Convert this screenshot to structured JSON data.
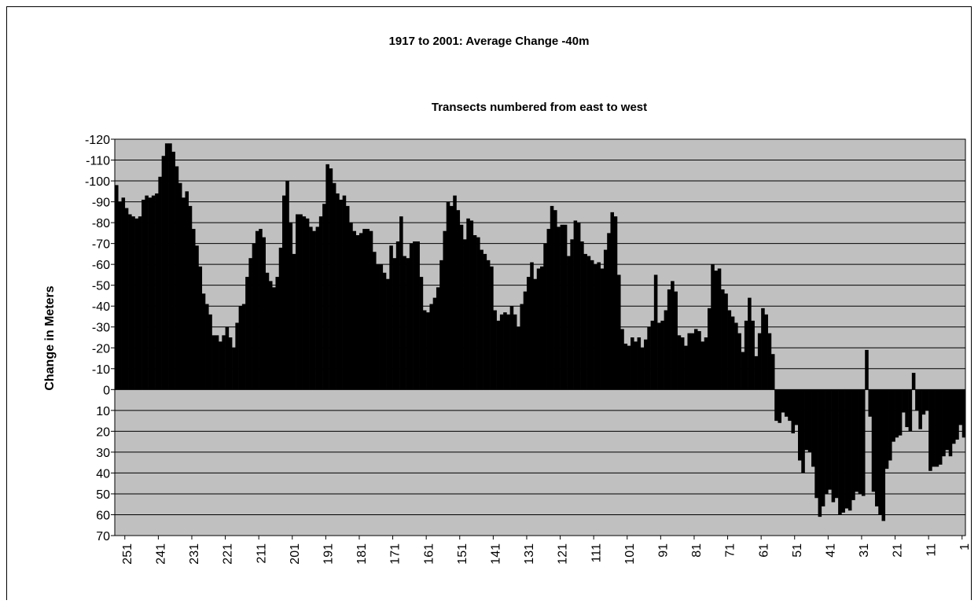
{
  "chart_data": {
    "type": "bar",
    "title": "1917 to 2001: Average Change -40m",
    "subtitle": "Transects numbered from east to west",
    "y_label": "Change in Meters",
    "color": "#000000",
    "plot_background": "#c0c0c0",
    "grid": true,
    "ylim": [
      70,
      -120
    ],
    "yticks": [
      -120,
      -110,
      -100,
      -90,
      -80,
      -70,
      -60,
      -50,
      -40,
      -30,
      -20,
      -10,
      0,
      10,
      20,
      30,
      40,
      50,
      60,
      70
    ],
    "categories": [
      null,
      null,
      null,
      "251",
      null,
      null,
      null,
      null,
      null,
      null,
      null,
      null,
      null,
      "241",
      null,
      null,
      null,
      null,
      null,
      null,
      null,
      null,
      null,
      "231",
      null,
      null,
      null,
      null,
      null,
      null,
      null,
      null,
      null,
      "221",
      null,
      null,
      null,
      null,
      null,
      null,
      null,
      null,
      null,
      "211",
      null,
      null,
      null,
      null,
      null,
      null,
      null,
      null,
      null,
      "201",
      null,
      null,
      null,
      null,
      null,
      null,
      null,
      null,
      null,
      "191",
      null,
      null,
      null,
      null,
      null,
      null,
      null,
      null,
      null,
      "181",
      null,
      null,
      null,
      null,
      null,
      null,
      null,
      null,
      null,
      "171",
      null,
      null,
      null,
      null,
      null,
      null,
      null,
      null,
      null,
      "161",
      null,
      null,
      null,
      null,
      null,
      null,
      null,
      null,
      null,
      "151",
      null,
      null,
      null,
      null,
      null,
      null,
      null,
      null,
      null,
      "141",
      null,
      null,
      null,
      null,
      null,
      null,
      null,
      null,
      null,
      "131",
      null,
      null,
      null,
      null,
      null,
      null,
      null,
      null,
      null,
      "121",
      null,
      null,
      null,
      null,
      null,
      null,
      null,
      null,
      null,
      "111",
      null,
      null,
      null,
      null,
      null,
      null,
      null,
      null,
      null,
      "101",
      null,
      null,
      null,
      null,
      null,
      null,
      null,
      null,
      null,
      "91",
      null,
      null,
      null,
      null,
      null,
      null,
      null,
      null,
      null,
      "81",
      null,
      null,
      null,
      null,
      null,
      null,
      null,
      null,
      null,
      "71",
      null,
      null,
      null,
      null,
      null,
      null,
      null,
      null,
      null,
      "61",
      null,
      null,
      null,
      null,
      null,
      null,
      null,
      null,
      null,
      "51",
      null,
      null,
      null,
      null,
      null,
      null,
      null,
      null,
      null,
      "41",
      null,
      null,
      null,
      null,
      null,
      null,
      null,
      null,
      null,
      "31",
      null,
      null,
      null,
      null,
      null,
      null,
      null,
      null,
      null,
      "21",
      null,
      null,
      null,
      null,
      null,
      null,
      null,
      null,
      null,
      "11",
      null,
      null,
      null,
      null,
      null,
      null,
      null,
      null,
      null,
      "1"
    ],
    "values": [
      -98,
      -90,
      -92,
      -87,
      -84,
      -83,
      -82,
      -83,
      -91,
      -93,
      -92,
      -93,
      -94,
      -102,
      -112,
      -118,
      -118,
      -114,
      -107,
      -99,
      -92,
      -95,
      -88,
      -77,
      -69,
      -59,
      -46,
      -41,
      -36,
      -26,
      -26,
      -23,
      -26,
      -30,
      -25,
      -20,
      -32,
      -40,
      -41,
      -54,
      -63,
      -70,
      -76,
      -77,
      -73,
      -56,
      -52,
      -49,
      -54,
      -68,
      -93,
      -100,
      -80,
      -65,
      -84,
      -84,
      -83,
      -82,
      -78,
      -76,
      -78,
      -83,
      -89,
      -108,
      -106,
      -99,
      -94,
      -91,
      -93,
      -88,
      -80,
      -76,
      -74,
      -75,
      -77,
      -77,
      -76,
      -66,
      -60,
      -60,
      -56,
      -53,
      -69,
      -63,
      -71,
      -83,
      -64,
      -63,
      -70,
      -71,
      -71,
      -54,
      -38,
      -37,
      -41,
      -44,
      -49,
      -62,
      -76,
      -90,
      -88,
      -93,
      -86,
      -79,
      -72,
      -82,
      -81,
      -74,
      -73,
      -67,
      -65,
      -62,
      -59,
      -38,
      -33,
      -36,
      -37,
      -36,
      -40,
      -36,
      -30,
      -41,
      -47,
      -54,
      -61,
      -53,
      -58,
      -59,
      -70,
      -77,
      -88,
      -86,
      -78,
      -79,
      -79,
      -64,
      -72,
      -81,
      -80,
      -71,
      -65,
      -64,
      -62,
      -60,
      -61,
      -58,
      -67,
      -75,
      -85,
      -83,
      -55,
      -29,
      -22,
      -21,
      -25,
      -23,
      -25,
      -20,
      -24,
      -30,
      -33,
      -55,
      -32,
      -33,
      -38,
      -48,
      -52,
      -47,
      -26,
      -25,
      -21,
      -27,
      -27,
      -29,
      -28,
      -23,
      -25,
      -39,
      -60,
      -57,
      -58,
      -48,
      -46,
      -38,
      -35,
      -32,
      -27,
      -18,
      -33,
      -44,
      -33,
      -16,
      -27,
      -39,
      -36,
      -27,
      -17,
      15,
      16,
      11,
      13,
      15,
      21,
      17,
      34,
      40,
      29,
      30,
      37,
      52,
      61,
      56,
      50,
      48,
      54,
      52,
      60,
      59,
      57,
      58,
      53,
      49,
      50,
      51,
      -19,
      13,
      49,
      56,
      60,
      63,
      38,
      34,
      25,
      23,
      22,
      11,
      18,
      20,
      -8,
      10,
      19,
      12,
      10,
      39,
      37,
      37,
      36,
      32,
      29,
      32,
      26,
      24,
      17,
      23
    ]
  }
}
